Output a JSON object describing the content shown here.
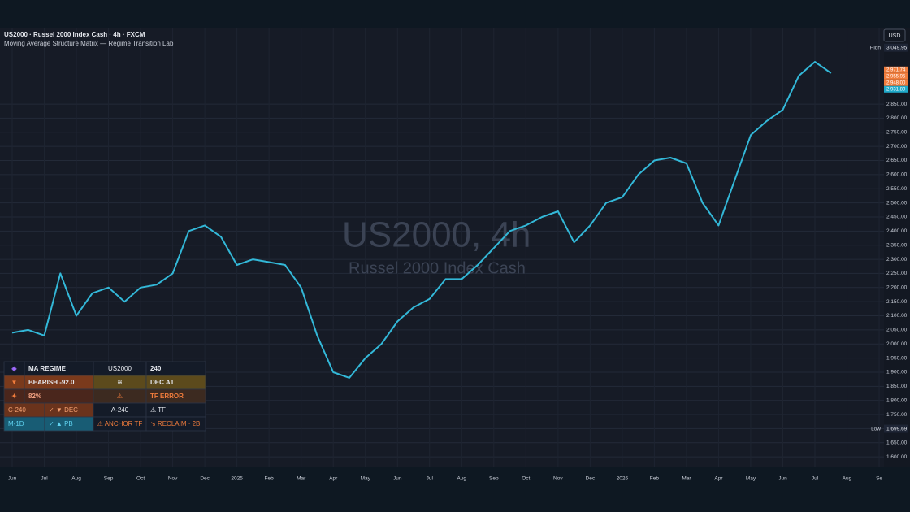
{
  "chart_data": {
    "type": "line",
    "title": "US2000 · Russel 2000 Index Cash · 4h · FXCM",
    "subtitle": "Moving Average Structure Matrix — Regime Transition Lab",
    "watermark": "US2000, 4h",
    "watermark_sub": "Russel 2000 Index Cash",
    "currency": "USD",
    "categories": [
      "Jun",
      null,
      "Jul",
      null,
      "Aug",
      null,
      "Sep",
      null,
      "Oct",
      null,
      "Nov",
      null,
      "Dec",
      null,
      "2025",
      null,
      "Feb",
      null,
      "Mar",
      null,
      "Apr",
      null,
      "May",
      null,
      "Jun",
      null,
      "Jul",
      null,
      "Aug",
      null,
      "Sep",
      null,
      "Oct",
      null,
      "Nov",
      null,
      "Dec",
      null,
      "2026",
      null,
      "Feb",
      null,
      "Mar",
      null,
      "Apr",
      null,
      "May",
      null,
      "Jun",
      null,
      "Jul",
      null,
      "Aug",
      null,
      "Se"
    ],
    "series": [
      {
        "name": "US2000",
        "color": "#33b8d8",
        "values": [
          2040,
          2050,
          2030,
          2250,
          2100,
          2180,
          2200,
          2150,
          2200,
          2210,
          2250,
          2400,
          2420,
          2380,
          2280,
          2300,
          2290,
          2280,
          2200,
          2030,
          1900,
          1880,
          1950,
          2000,
          2080,
          2130,
          2160,
          2230,
          2230,
          2280,
          2340,
          2400,
          2420,
          2450,
          2470,
          2360,
          2420,
          2500,
          2520,
          2600,
          2650,
          2660,
          2640,
          2500,
          2420,
          2580,
          2740,
          2790,
          2830,
          2950,
          3000,
          2960,
          null,
          null,
          null
        ]
      }
    ],
    "ylim": [
      1563,
      3118
    ],
    "yticks": [
      {
        "value": 1600,
        "label": "1,600.00"
      },
      {
        "value": 1650,
        "label": "1,650.00"
      },
      {
        "value": 1700,
        "label": "1,700.00"
      },
      {
        "value": 1750,
        "label": "1,750.00"
      },
      {
        "value": 1800,
        "label": "1,800.00"
      },
      {
        "value": 1850,
        "label": "1,850.00"
      },
      {
        "value": 1900,
        "label": "1,900.00"
      },
      {
        "value": 1950,
        "label": "1,950.00"
      },
      {
        "value": 2000,
        "label": "2,000.00"
      },
      {
        "value": 2050,
        "label": "2,050.00"
      },
      {
        "value": 2100,
        "label": "2,100.00"
      },
      {
        "value": 2150,
        "label": "2,150.00"
      },
      {
        "value": 2200,
        "label": "2,200.00"
      },
      {
        "value": 2250,
        "label": "2,250.00"
      },
      {
        "value": 2300,
        "label": "2,300.00"
      },
      {
        "value": 2350,
        "label": "2,350.00"
      },
      {
        "value": 2400,
        "label": "2,400.00"
      },
      {
        "value": 2450,
        "label": "2,450.00"
      },
      {
        "value": 2500,
        "label": "2,500.00"
      },
      {
        "value": 2550,
        "label": "2,550.00"
      },
      {
        "value": 2600,
        "label": "2,600.00"
      },
      {
        "value": 2650,
        "label": "2,650.00"
      },
      {
        "value": 2700,
        "label": "2,700.00"
      },
      {
        "value": 2750,
        "label": "2,750.00"
      },
      {
        "value": 2800,
        "label": "2,800.00"
      },
      {
        "value": 2850,
        "label": "2,850.00"
      }
    ],
    "grid": true,
    "markers": [
      {
        "name": "High",
        "value": 3049.95,
        "label": "3,049.95"
      },
      {
        "name": "Low",
        "value": 1699.69,
        "label": "1,699.69"
      }
    ],
    "price_tags": [
      {
        "value": 2971.74,
        "label": "2,971.74",
        "color": "#f07c3c"
      },
      {
        "value": 2955.95,
        "label": "2,955.95",
        "color": "#f07c3c"
      },
      {
        "value": 2948.0,
        "label": "2,948.00",
        "color": "#f07c3c"
      },
      {
        "value": 2931.89,
        "label": "2,931.89",
        "color": "#1fa9c9"
      }
    ],
    "panel": {
      "rows": [
        [
          "◈",
          "MA REGIME",
          "US2000",
          "240"
        ],
        [
          "▼",
          "BEARISH -92.0",
          "≋",
          "DEC A1"
        ],
        [
          "✦",
          "82%",
          "⚠",
          "TF ERROR"
        ],
        [
          "C-240",
          "✓ ▼ DEC",
          "A-240",
          "⚠ TF"
        ],
        [
          "M-1D",
          "✓ ▲ PB",
          "⚠ ANCHOR TF",
          "↘ RECLAIM · 2B"
        ]
      ]
    }
  }
}
